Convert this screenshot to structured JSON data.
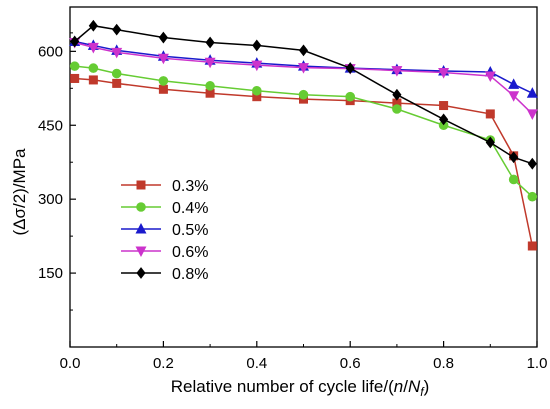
{
  "chart_data": {
    "type": "line",
    "title": "",
    "xlabel_prefix": "Relative number of cycle life/(",
    "xlabel_n": "n",
    "xlabel_slash": "/",
    "xlabel_N": "N",
    "xlabel_sub": "f",
    "xlabel_suffix": ")",
    "ylabel": "(Δσ/2)/MPa",
    "xlim": [
      0,
      1.0
    ],
    "ylim": [
      0,
      690
    ],
    "xticks": [
      0.0,
      0.2,
      0.4,
      0.6,
      0.8,
      1.0
    ],
    "xtick_labels": [
      "0.0",
      "0.2",
      "0.4",
      "0.6",
      "0.8",
      "1.0"
    ],
    "yticks": [
      150,
      300,
      450,
      600
    ],
    "ytick_labels": [
      "150",
      "300",
      "450",
      "600"
    ],
    "grid": false,
    "legend_position": "lower-left",
    "series": [
      {
        "name": "0.3%",
        "color": "#c0392b",
        "marker": "square",
        "x": [
          0.01,
          0.05,
          0.1,
          0.2,
          0.3,
          0.4,
          0.5,
          0.6,
          0.7,
          0.8,
          0.9,
          0.95,
          0.99
        ],
        "y": [
          545,
          542,
          535,
          523,
          515,
          508,
          503,
          500,
          495,
          490,
          473,
          388,
          205
        ]
      },
      {
        "name": "0.4%",
        "color": "#66cc33",
        "marker": "circle",
        "x": [
          0.01,
          0.05,
          0.1,
          0.2,
          0.3,
          0.4,
          0.5,
          0.6,
          0.7,
          0.8,
          0.9,
          0.95,
          0.99
        ],
        "y": [
          570,
          566,
          555,
          540,
          530,
          520,
          512,
          508,
          483,
          450,
          420,
          340,
          305
        ]
      },
      {
        "name": "0.5%",
        "color": "#1a1acc",
        "marker": "triangle-up",
        "x": [
          0.01,
          0.05,
          0.1,
          0.2,
          0.3,
          0.4,
          0.5,
          0.6,
          0.7,
          0.8,
          0.9,
          0.95,
          0.99
        ],
        "y": [
          620,
          612,
          602,
          590,
          582,
          576,
          570,
          566,
          563,
          560,
          558,
          533,
          515
        ]
      },
      {
        "name": "0.6%",
        "color": "#cc33cc",
        "marker": "triangle-down",
        "x": [
          0.01,
          0.05,
          0.1,
          0.2,
          0.3,
          0.4,
          0.5,
          0.6,
          0.7,
          0.8,
          0.9,
          0.95,
          0.99
        ],
        "y": [
          618,
          608,
          598,
          586,
          578,
          572,
          567,
          565,
          561,
          557,
          550,
          510,
          473
        ]
      },
      {
        "name": "0.8%",
        "color": "#000000",
        "marker": "diamond",
        "x": [
          0.01,
          0.05,
          0.1,
          0.2,
          0.3,
          0.4,
          0.5,
          0.6,
          0.7,
          0.8,
          0.9,
          0.95,
          0.99
        ],
        "y": [
          620,
          652,
          644,
          628,
          618,
          612,
          602,
          566,
          512,
          462,
          415,
          385,
          372
        ]
      }
    ]
  }
}
